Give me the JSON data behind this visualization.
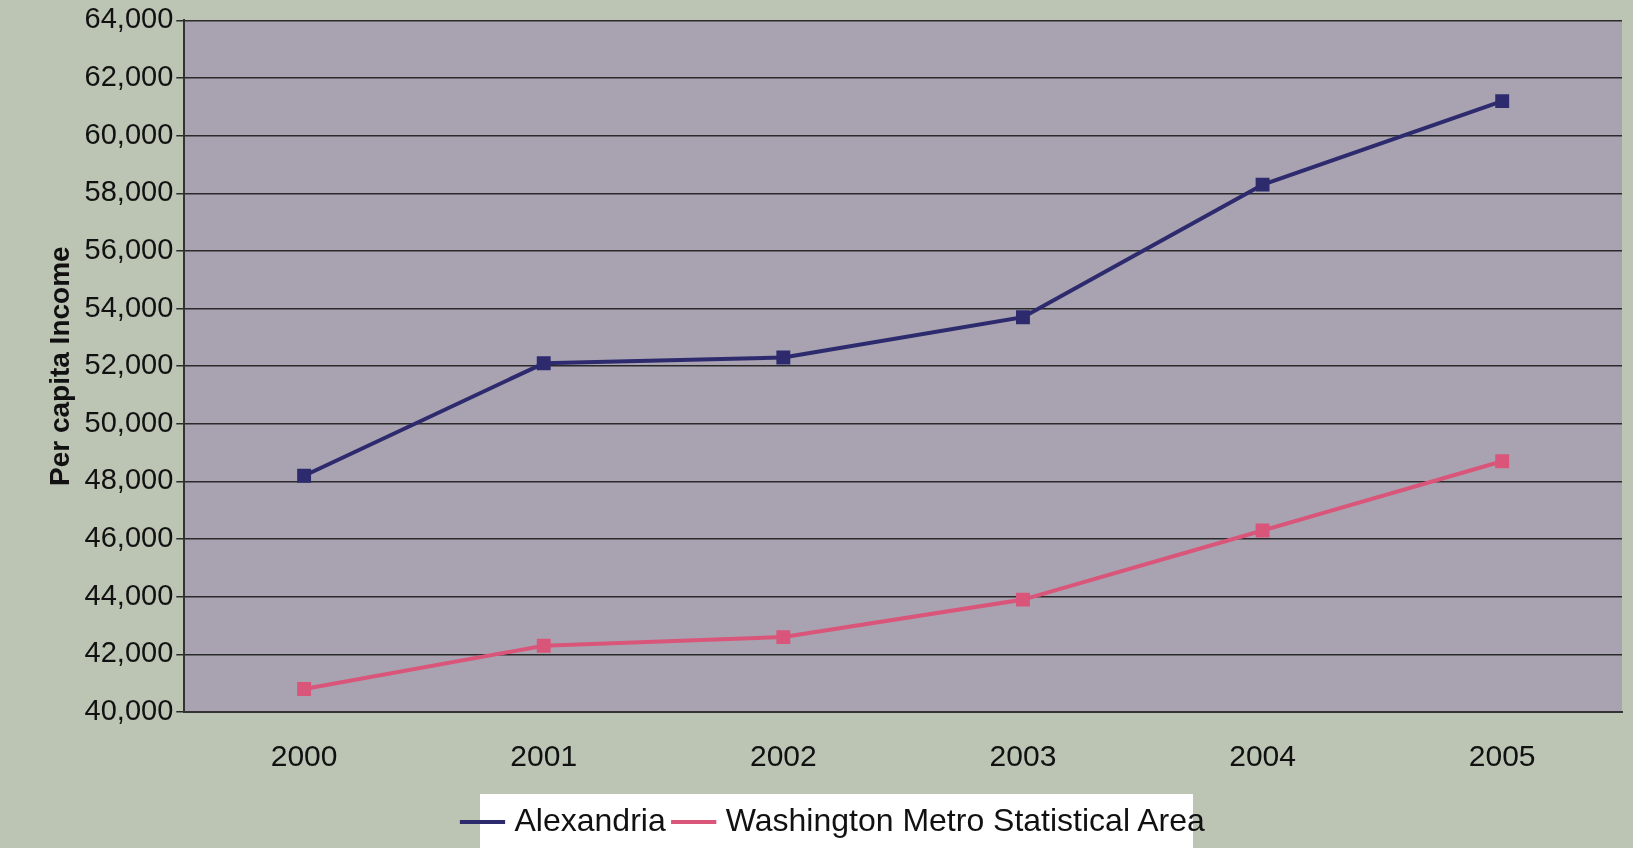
{
  "chart_data": {
    "type": "line",
    "ylabel": "Per capita Income",
    "categories": [
      "2000",
      "2001",
      "2002",
      "2003",
      "2004",
      "2005"
    ],
    "series": [
      {
        "name": "Alexandria",
        "color": "#2e2a6e",
        "values": [
          48200,
          52100,
          52300,
          53700,
          58300,
          61200
        ]
      },
      {
        "name": "Washington Metro Statistical Area",
        "color": "#d9557a",
        "values": [
          40800,
          42300,
          42600,
          43900,
          46300,
          48700
        ]
      }
    ],
    "ylim": [
      40000,
      64000
    ],
    "yticks": [
      {
        "value": 40000,
        "label": "40,000"
      },
      {
        "value": 42000,
        "label": "42,000"
      },
      {
        "value": 44000,
        "label": "44,000"
      },
      {
        "value": 46000,
        "label": "46,000"
      },
      {
        "value": 48000,
        "label": "48,000"
      },
      {
        "value": 50000,
        "label": "50,000"
      },
      {
        "value": 52000,
        "label": "52,000"
      },
      {
        "value": 54000,
        "label": "54,000"
      },
      {
        "value": 56000,
        "label": "56,000"
      },
      {
        "value": 58000,
        "label": "58,000"
      },
      {
        "value": 60000,
        "label": "60,000"
      },
      {
        "value": 62000,
        "label": "62,000"
      },
      {
        "value": 64000,
        "label": "64,000"
      }
    ],
    "grid": "y",
    "legend": "bottom",
    "marker": "square",
    "line_style": "solid"
  }
}
